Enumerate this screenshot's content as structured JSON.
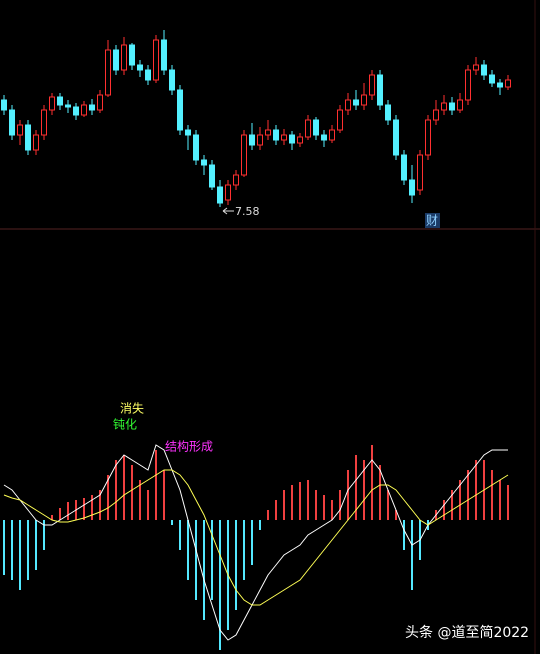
{
  "chart_data": [
    {
      "type": "candlestick",
      "open": [
        8.65,
        8.55,
        8.3,
        8.4,
        8.15,
        8.3,
        8.55,
        8.68,
        8.6,
        8.58,
        8.5,
        8.6,
        8.55,
        8.7,
        9.15,
        8.95,
        9.2,
        9.0,
        8.95,
        8.85,
        9.25,
        8.95,
        8.75,
        8.35,
        8.3,
        8.05,
        8.0,
        7.78,
        7.65,
        7.8,
        7.9,
        8.3,
        8.2,
        8.3,
        8.35,
        8.25,
        8.3,
        8.22,
        8.28,
        8.45,
        8.3,
        8.25,
        8.35,
        8.55,
        8.65,
        8.6,
        8.7,
        8.9,
        8.6,
        8.45,
        8.1,
        7.85,
        7.75,
        8.1,
        8.45,
        8.55,
        8.62,
        8.55,
        8.65,
        8.95,
        9.0,
        8.9,
        8.82,
        8.78
      ],
      "high": [
        8.7,
        8.6,
        8.45,
        8.45,
        8.35,
        8.6,
        8.72,
        8.72,
        8.65,
        8.62,
        8.64,
        8.66,
        8.75,
        9.25,
        9.2,
        9.28,
        9.22,
        9.05,
        9.0,
        9.3,
        9.35,
        9.0,
        8.8,
        8.4,
        8.35,
        8.1,
        8.05,
        7.85,
        7.85,
        7.95,
        8.35,
        8.42,
        8.38,
        8.45,
        8.4,
        8.36,
        8.34,
        8.32,
        8.5,
        8.48,
        8.35,
        8.4,
        8.6,
        8.72,
        8.75,
        8.82,
        8.95,
        8.95,
        8.65,
        8.5,
        8.15,
        8.0,
        8.15,
        8.5,
        8.65,
        8.7,
        8.68,
        8.72,
        9.0,
        9.08,
        9.05,
        8.95,
        8.86,
        8.9
      ],
      "low": [
        8.5,
        8.25,
        8.2,
        8.1,
        8.1,
        8.25,
        8.5,
        8.55,
        8.52,
        8.45,
        8.48,
        8.5,
        8.52,
        8.68,
        8.9,
        8.9,
        8.95,
        8.88,
        8.8,
        8.82,
        8.9,
        8.7,
        8.3,
        8.15,
        8.0,
        7.9,
        7.75,
        7.58,
        7.6,
        7.75,
        7.88,
        8.15,
        8.15,
        8.25,
        8.2,
        8.2,
        8.15,
        8.18,
        8.25,
        8.25,
        8.18,
        8.22,
        8.32,
        8.5,
        8.55,
        8.55,
        8.65,
        8.55,
        8.4,
        8.05,
        7.8,
        7.62,
        7.7,
        8.05,
        8.4,
        8.5,
        8.5,
        8.52,
        8.6,
        8.9,
        8.85,
        8.78,
        8.7,
        8.75
      ],
      "close": [
        8.55,
        8.3,
        8.4,
        8.15,
        8.3,
        8.55,
        8.68,
        8.6,
        8.58,
        8.5,
        8.6,
        8.55,
        8.7,
        9.15,
        8.95,
        9.2,
        9.0,
        8.95,
        8.85,
        9.25,
        8.95,
        8.75,
        8.35,
        8.3,
        8.05,
        8.0,
        7.78,
        7.62,
        7.8,
        7.9,
        8.3,
        8.2,
        8.3,
        8.35,
        8.25,
        8.3,
        8.22,
        8.28,
        8.45,
        8.3,
        8.25,
        8.35,
        8.55,
        8.65,
        8.6,
        8.7,
        8.9,
        8.6,
        8.45,
        8.1,
        7.85,
        7.7,
        8.1,
        8.45,
        8.55,
        8.62,
        8.55,
        8.65,
        8.95,
        9.0,
        8.9,
        8.82,
        8.78,
        8.85
      ],
      "up_color": "#ff3030",
      "down_color": "#54f0ff",
      "ylim": [
        7.35,
        9.65
      ],
      "annotations": [
        {
          "label": "7.58",
          "value": 7.58
        },
        {
          "text": "财"
        }
      ]
    },
    {
      "type": "macd",
      "values": [
        -0.55,
        -0.6,
        -0.7,
        -0.6,
        -0.5,
        -0.3,
        0.05,
        0.12,
        0.18,
        0.2,
        0.22,
        0.25,
        0.3,
        0.45,
        0.6,
        0.65,
        0.55,
        0.4,
        0.3,
        0.7,
        0.5,
        -0.05,
        -0.3,
        -0.6,
        -0.8,
        -1.0,
        -0.8,
        -1.3,
        -1.1,
        -0.9,
        -0.6,
        -0.45,
        -0.1,
        0.1,
        0.2,
        0.3,
        0.35,
        0.38,
        0.4,
        0.3,
        0.25,
        0.2,
        0.3,
        0.5,
        0.65,
        0.6,
        0.75,
        0.55,
        0.3,
        0.1,
        -0.3,
        -0.7,
        -0.4,
        -0.1,
        0.1,
        0.2,
        0.3,
        0.4,
        0.5,
        0.6,
        0.6,
        0.5,
        0.4,
        0.35
      ],
      "up_color": "#f04040",
      "down_color": "#54e8ff",
      "lines": [
        {
          "color": "#ffffff",
          "values": [
            0.35,
            0.3,
            0.2,
            0.1,
            0.0,
            -0.05,
            -0.05,
            0,
            0.05,
            0.1,
            0.15,
            0.2,
            0.25,
            0.4,
            0.55,
            0.65,
            0.6,
            0.55,
            0.5,
            0.75,
            0.7,
            0.5,
            0.3,
            0.0,
            -0.3,
            -0.6,
            -0.85,
            -1.1,
            -1.2,
            -1.15,
            -1.0,
            -0.85,
            -0.7,
            -0.55,
            -0.45,
            -0.35,
            -0.3,
            -0.25,
            -0.15,
            -0.1,
            -0.05,
            0,
            0.1,
            0.3,
            0.4,
            0.5,
            0.6,
            0.5,
            0.3,
            0.1,
            -0.1,
            -0.25,
            -0.2,
            -0.05,
            0.05,
            0.15,
            0.25,
            0.35,
            0.45,
            0.55,
            0.65,
            0.7,
            0.7,
            0.7
          ]
        },
        {
          "color": "#ffff55",
          "values": [
            0.25,
            0.22,
            0.2,
            0.15,
            0.1,
            0.05,
            0,
            -0.02,
            -0.02,
            0,
            0.02,
            0.05,
            0.08,
            0.12,
            0.18,
            0.25,
            0.3,
            0.35,
            0.4,
            0.45,
            0.5,
            0.5,
            0.45,
            0.35,
            0.2,
            0.05,
            -0.15,
            -0.35,
            -0.55,
            -0.7,
            -0.8,
            -0.85,
            -0.85,
            -0.8,
            -0.75,
            -0.7,
            -0.65,
            -0.6,
            -0.5,
            -0.4,
            -0.3,
            -0.2,
            -0.1,
            0,
            0.1,
            0.2,
            0.3,
            0.35,
            0.35,
            0.3,
            0.2,
            0.1,
            0,
            -0.05,
            0,
            0.05,
            0.1,
            0.15,
            0.2,
            0.25,
            0.3,
            0.35,
            0.4,
            0.45
          ]
        }
      ],
      "ylim": [
        -1.35,
        0.85
      ],
      "annotations": [
        {
          "text": "消失",
          "color": "#ffff66"
        },
        {
          "text": "钝化",
          "color": "#33ff33"
        },
        {
          "text": "结构形成",
          "color": "#ff33ff"
        }
      ]
    }
  ],
  "watermark": "头条 @道至简2022"
}
